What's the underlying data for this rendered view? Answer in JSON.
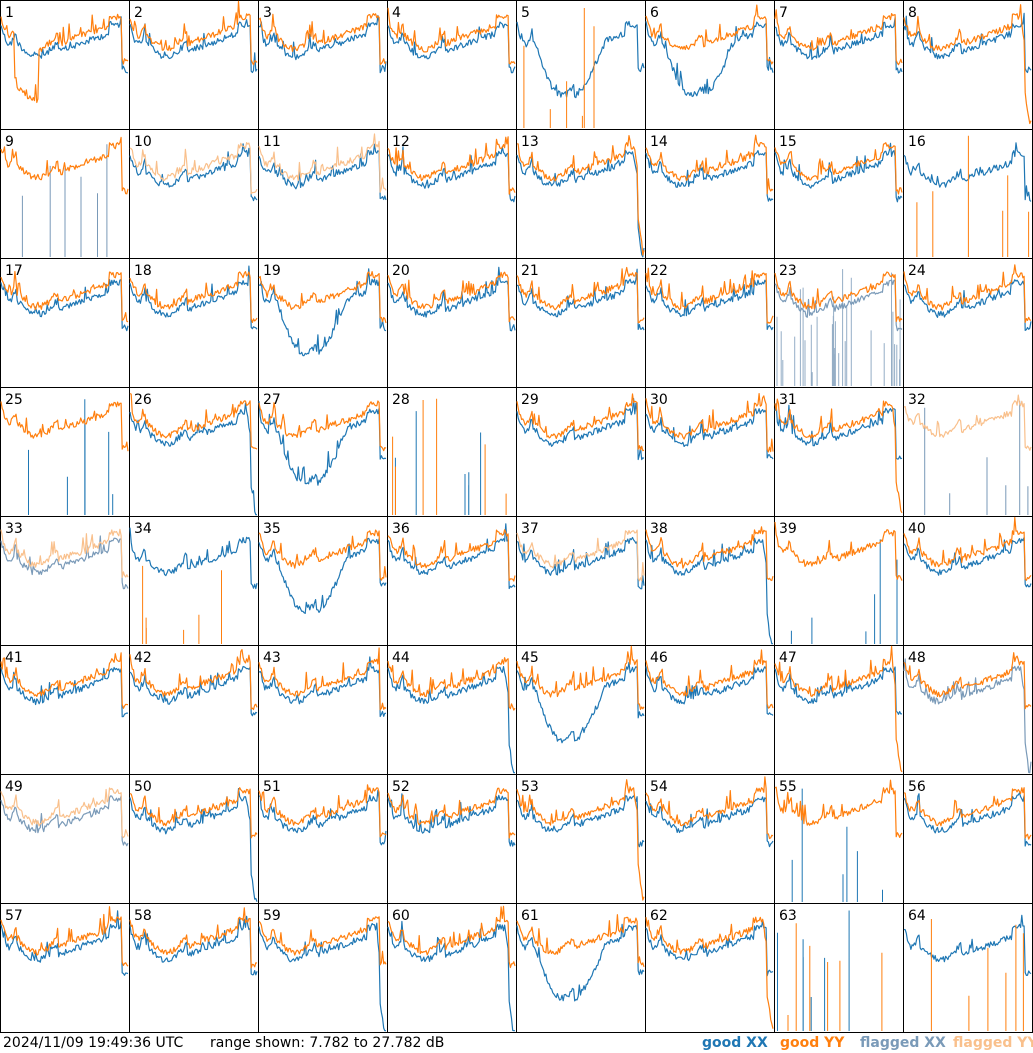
{
  "footer": {
    "timestamp": "2024/11/09 19:49:36 UTC",
    "range_text": "range shown: 7.782 to 27.782 dB"
  },
  "legend": [
    {
      "label": "good XX",
      "color": "#1f77b4"
    },
    {
      "label": "good YY",
      "color": "#ff7f0e"
    },
    {
      "label": "flagged XX",
      "color": "#7a9ab8"
    },
    {
      "label": "flagged YY",
      "color": "#f9c08c"
    }
  ],
  "chart_data": {
    "type": "line",
    "layout": "small-multiples 8x8",
    "ylim": [
      7.782,
      27.782
    ],
    "yunit": "dB",
    "series_names": [
      "good XX",
      "good YY",
      "flagged XX",
      "flagged YY"
    ],
    "panels": [
      {
        "id": "1",
        "xx": "ok",
        "yy": "dropout"
      },
      {
        "id": "2",
        "xx": "ok",
        "yy": "ok"
      },
      {
        "id": "3",
        "xx": "ok",
        "yy": "ok"
      },
      {
        "id": "4",
        "xx": "ok",
        "yy": "ok"
      },
      {
        "id": "5",
        "xx": "dip",
        "yy": "dead"
      },
      {
        "id": "6",
        "xx": "dip",
        "yy": "ok"
      },
      {
        "id": "7",
        "xx": "ok",
        "yy": "ok"
      },
      {
        "id": "8",
        "xx": "ok",
        "yy": "rolloff"
      },
      {
        "id": "9",
        "xx": "flagged-dead",
        "yy": "ok"
      },
      {
        "id": "10",
        "xx": "ok",
        "yy": "flagged"
      },
      {
        "id": "11",
        "xx": "ok",
        "yy": "flagged"
      },
      {
        "id": "12",
        "xx": "ok",
        "yy": "ok"
      },
      {
        "id": "13",
        "xx": "rolloff",
        "yy": "rolloff"
      },
      {
        "id": "14",
        "xx": "ok",
        "yy": "ok"
      },
      {
        "id": "15",
        "xx": "ok",
        "yy": "ok"
      },
      {
        "id": "16",
        "xx": "ok",
        "yy": "dead"
      },
      {
        "id": "17",
        "xx": "ok",
        "yy": "ok"
      },
      {
        "id": "18",
        "xx": "ok",
        "yy": "ok"
      },
      {
        "id": "19",
        "xx": "dip",
        "yy": "ok"
      },
      {
        "id": "20",
        "xx": "ok",
        "yy": "ok"
      },
      {
        "id": "21",
        "xx": "ok",
        "yy": "ok"
      },
      {
        "id": "22",
        "xx": "ok",
        "yy": "ok"
      },
      {
        "id": "23",
        "xx": "flagged-noisy",
        "yy": "ok"
      },
      {
        "id": "24",
        "xx": "ok",
        "yy": "ok"
      },
      {
        "id": "25",
        "xx": "dead",
        "yy": "ok"
      },
      {
        "id": "26",
        "xx": "rolloff",
        "yy": "ok"
      },
      {
        "id": "27",
        "xx": "dip",
        "yy": "ok"
      },
      {
        "id": "28",
        "xx": "dead",
        "yy": "dead"
      },
      {
        "id": "29",
        "xx": "ok",
        "yy": "ok"
      },
      {
        "id": "30",
        "xx": "ok",
        "yy": "ok"
      },
      {
        "id": "31",
        "xx": "ok",
        "yy": "rolloff"
      },
      {
        "id": "32",
        "xx": "flagged-dead",
        "yy": "flagged"
      },
      {
        "id": "33",
        "xx": "flagged",
        "yy": "flagged"
      },
      {
        "id": "34",
        "xx": "ok",
        "yy": "dead"
      },
      {
        "id": "35",
        "xx": "dip",
        "yy": "ok"
      },
      {
        "id": "36",
        "xx": "ok",
        "yy": "ok"
      },
      {
        "id": "37",
        "xx": "ok",
        "yy": "flagged"
      },
      {
        "id": "38",
        "xx": "rolloff",
        "yy": "ok"
      },
      {
        "id": "39",
        "xx": "dead",
        "yy": "ok"
      },
      {
        "id": "40",
        "xx": "ok",
        "yy": "ok"
      },
      {
        "id": "41",
        "xx": "ok",
        "yy": "ok"
      },
      {
        "id": "42",
        "xx": "ok",
        "yy": "ok"
      },
      {
        "id": "43",
        "xx": "ok",
        "yy": "ok"
      },
      {
        "id": "44",
        "xx": "rolloff",
        "yy": "ok"
      },
      {
        "id": "45",
        "xx": "dip",
        "yy": "ok"
      },
      {
        "id": "46",
        "xx": "ok",
        "yy": "ok"
      },
      {
        "id": "47",
        "xx": "ok",
        "yy": "rolloff"
      },
      {
        "id": "48",
        "xx": "flagged-rolloff",
        "yy": "ok"
      },
      {
        "id": "49",
        "xx": "flagged",
        "yy": "flagged"
      },
      {
        "id": "50",
        "xx": "rolloff",
        "yy": "ok"
      },
      {
        "id": "51",
        "xx": "ok",
        "yy": "ok"
      },
      {
        "id": "52",
        "xx": "ok",
        "yy": "ok"
      },
      {
        "id": "53",
        "xx": "ok",
        "yy": "rolloff"
      },
      {
        "id": "54",
        "xx": "ok",
        "yy": "ok"
      },
      {
        "id": "55",
        "xx": "dead",
        "yy": "ok"
      },
      {
        "id": "56",
        "xx": "ok",
        "yy": "ok"
      },
      {
        "id": "57",
        "xx": "ok",
        "yy": "ok"
      },
      {
        "id": "58",
        "xx": "ok",
        "yy": "ok"
      },
      {
        "id": "59",
        "xx": "rolloff",
        "yy": "ok"
      },
      {
        "id": "60",
        "xx": "rolloff",
        "yy": "ok"
      },
      {
        "id": "61",
        "xx": "dip",
        "yy": "ok"
      },
      {
        "id": "62",
        "xx": "ok",
        "yy": "rolloff"
      },
      {
        "id": "63",
        "xx": "dead",
        "yy": "dead"
      },
      {
        "id": "64",
        "xx": "ok",
        "yy": "dead"
      }
    ]
  }
}
